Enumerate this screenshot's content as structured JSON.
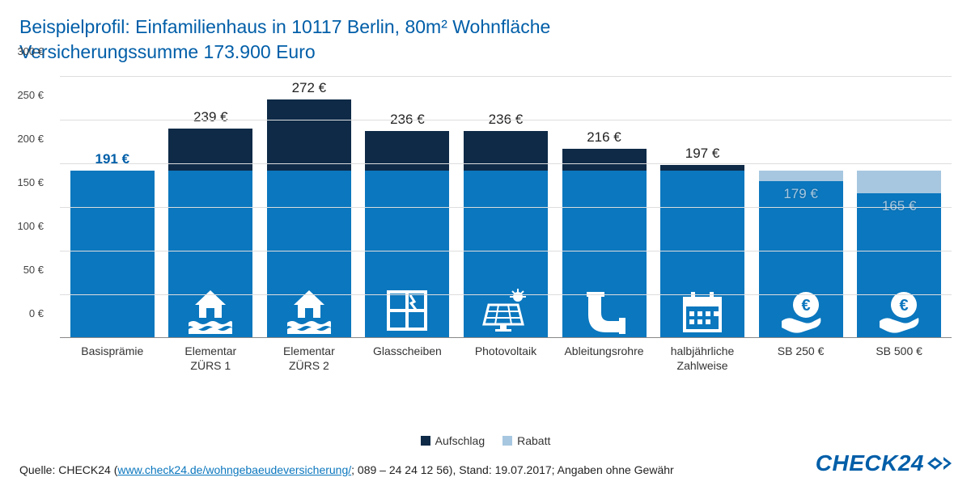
{
  "title_line1": "Beispielprofil: Einfamilienhaus in 10117 Berlin, 80m² Wohnfläche",
  "title_line2": "Versicherungssumme 173.900 Euro",
  "chart": {
    "type": "stacked-bar",
    "y_max": 300,
    "y_tick_step": 50,
    "y_unit": "€",
    "colors": {
      "base": "#0b77be",
      "surcharge": "#0e2a47",
      "discount": "#a7c7e0",
      "grid": "#dddddd",
      "axis": "#888888",
      "title": "#005ea8",
      "text": "#333333"
    },
    "legend": {
      "surcharge": "Aufschlag",
      "discount": "Rabatt"
    },
    "bars": [
      {
        "category": "Basisprämie",
        "base": 191,
        "surcharge": 0,
        "discount": 0,
        "label": "191 €",
        "label_accent": true,
        "icon": null
      },
      {
        "category": "Elementar\nZÜRS 1",
        "base": 191,
        "surcharge": 48,
        "discount": 0,
        "label": "239 €",
        "label_accent": false,
        "icon": "flood-house"
      },
      {
        "category": "Elementar\nZÜRS 2",
        "base": 191,
        "surcharge": 81,
        "discount": 0,
        "label": "272 €",
        "label_accent": false,
        "icon": "flood-house"
      },
      {
        "category": "Glasscheiben",
        "base": 191,
        "surcharge": 45,
        "discount": 0,
        "label": "236 €",
        "label_accent": false,
        "icon": "broken-window"
      },
      {
        "category": "Photovoltaik",
        "base": 191,
        "surcharge": 45,
        "discount": 0,
        "label": "236 €",
        "label_accent": false,
        "icon": "solar-panel"
      },
      {
        "category": "Ableitungsrohre",
        "base": 191,
        "surcharge": 25,
        "discount": 0,
        "label": "216 €",
        "label_accent": false,
        "icon": "pipe"
      },
      {
        "category": "halbjährliche\nZahlweise",
        "base": 191,
        "surcharge": 6,
        "discount": 0,
        "label": "197 €",
        "label_accent": false,
        "icon": "calendar"
      },
      {
        "category": "SB 250 €",
        "base": 179,
        "surcharge": 0,
        "discount": 12,
        "label": "",
        "inner_label": "179 €",
        "label_accent": false,
        "icon": "euro-hand"
      },
      {
        "category": "SB 500 €",
        "base": 165,
        "surcharge": 0,
        "discount": 26,
        "label": "",
        "inner_label": "165 €",
        "label_accent": false,
        "icon": "euro-hand"
      }
    ]
  },
  "source": {
    "prefix": "Quelle: CHECK24 (",
    "link_text": "www.check24.de/wohngebaeudeversicherung/",
    "link_href": "https://www.check24.de/wohngebaeudeversicherung/",
    "suffix": "; 089 – 24 24 12 56), Stand: 19.07.2017; Angaben ohne Gewähr"
  },
  "brand": "CHECK24"
}
